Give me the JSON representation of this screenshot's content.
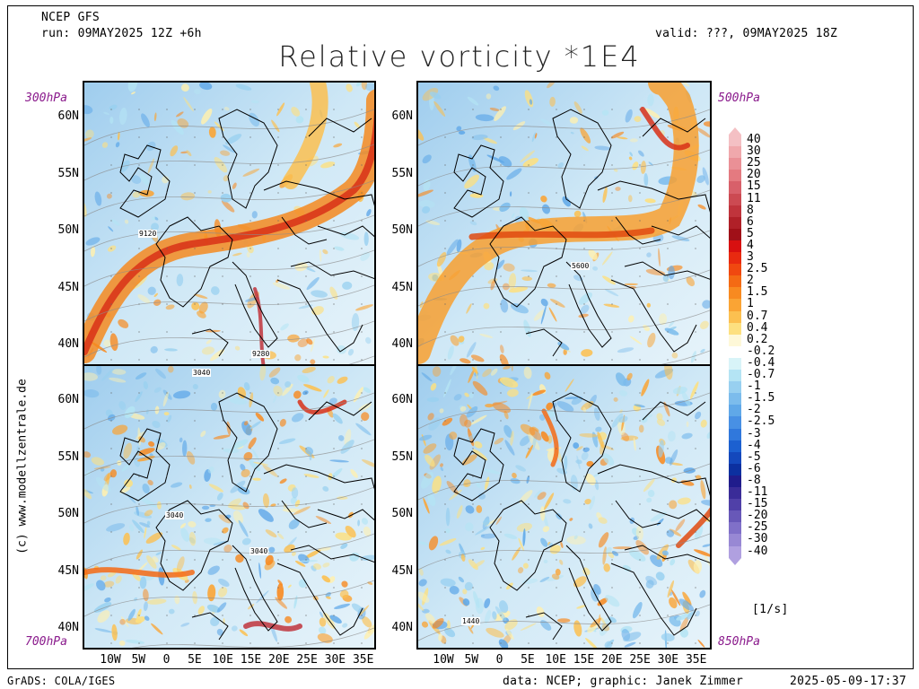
{
  "header": {
    "model": "NCEP GFS",
    "run": "run: 09MAY2025 12Z +6h",
    "valid": "valid: ???, 09MAY2025 18Z",
    "title": "Relative vorticity *1E4"
  },
  "panels": [
    {
      "id": "tl",
      "level": "300hPa",
      "contour_labels": [
        "9120",
        "9280"
      ]
    },
    {
      "id": "tr",
      "level": "500hPa",
      "contour_labels": [
        "5600"
      ]
    },
    {
      "id": "bl",
      "level": "700hPa",
      "contour_labels": [
        "3040",
        "3040",
        "3040"
      ]
    },
    {
      "id": "br",
      "level": "850hPa",
      "contour_labels": [
        "1440"
      ]
    }
  ],
  "lat_labels": [
    "60N",
    "55N",
    "50N",
    "45N",
    "40N"
  ],
  "lon_labels": [
    "10W",
    "5W",
    "0",
    "5E",
    "10E",
    "15E",
    "20E",
    "25E",
    "30E",
    "35E"
  ],
  "colorbar": {
    "labels": [
      "40",
      "30",
      "25",
      "20",
      "15",
      "11",
      "8",
      "6",
      "5",
      "4",
      "3",
      "2.5",
      "2",
      "1.5",
      "1",
      "0.7",
      "0.4",
      "0.2",
      "-0.2",
      "-0.4",
      "-0.7",
      "-1",
      "-1.5",
      "-2",
      "-2.5",
      "-3",
      "-4",
      "-5",
      "-6",
      "-8",
      "-11",
      "-15",
      "-20",
      "-25",
      "-30",
      "-40"
    ],
    "colors": [
      "#f4c0c4",
      "#f0a8ac",
      "#ea9096",
      "#e47a80",
      "#d8606a",
      "#cc4a52",
      "#c0343c",
      "#b02028",
      "#a01018",
      "#d81010",
      "#e82a10",
      "#f04810",
      "#f46a14",
      "#f88a20",
      "#faa434",
      "#fcc050",
      "#fde080",
      "#fef8d8",
      "#ffffff",
      "#d8f4f8",
      "#b4e4f4",
      "#98d0f0",
      "#7cbcec",
      "#60a8e8",
      "#4890e4",
      "#3078dc",
      "#1c60d0",
      "#1448bc",
      "#0c30a0",
      "#201c8c",
      "#3a2c98",
      "#5040a8",
      "#6858b8",
      "#8070c8",
      "#9888d4",
      "#b0a0e0"
    ],
    "unit": "[1/s]"
  },
  "credit_side": "(c) www.modellzentrale.de",
  "footer": {
    "left": "GrADS: COLA/IGES",
    "center": "data: NCEP; graphic: Janek Zimmer",
    "right": "2025-05-09-17:37"
  }
}
